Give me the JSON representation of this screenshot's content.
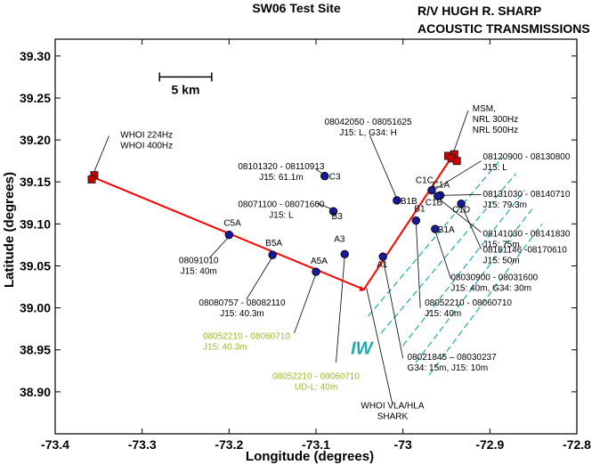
{
  "header": {
    "title": "SW06 Test Site",
    "right_line1": "R/V HUGH R. SHARP",
    "right_line2": "ACOUSTIC TRANSMISSIONS"
  },
  "chart_data": {
    "type": "scatter",
    "xlabel": "Longitude (degrees)",
    "ylabel": "Latitude (degrees)",
    "xlim": [
      -73.4,
      -72.8
    ],
    "ylim": [
      38.85,
      39.32
    ],
    "xticks": [
      -73.4,
      -73.3,
      -73.2,
      -73.1,
      -73.0,
      -72.9,
      -72.8
    ],
    "yticks": [
      38.9,
      38.95,
      39.0,
      39.05,
      39.1,
      39.15,
      39.2,
      39.25,
      39.3
    ],
    "xtick_labels": [
      "-73.4",
      "-73.3",
      "-73.2",
      "-73.1",
      "-73",
      "-72.9",
      "-72.8"
    ],
    "ytick_labels": [
      "38.90",
      "38.95",
      "39.00",
      "39.05",
      "39.10",
      "39.15",
      "39.20",
      "39.25",
      "39.30"
    ],
    "scale_bar": {
      "label": "5 km",
      "x": [
        -73.28,
        -73.22
      ],
      "y": 39.275
    },
    "track": [
      {
        "x": -73.355,
        "y": 39.155
      },
      {
        "x": -73.045,
        "y": 39.022
      },
      {
        "x": -72.945,
        "y": 39.178
      }
    ],
    "sources": [
      {
        "x": -73.355,
        "y": 39.158
      },
      {
        "x": -73.358,
        "y": 39.153
      },
      {
        "x": -72.948,
        "y": 39.181
      },
      {
        "x": -72.941,
        "y": 39.183
      },
      {
        "x": -72.944,
        "y": 39.178
      },
      {
        "x": -72.938,
        "y": 39.175
      }
    ],
    "moorings": [
      {
        "name": "C5A",
        "x": -73.2,
        "y": 39.087
      },
      {
        "name": "B5A",
        "x": -73.15,
        "y": 39.063
      },
      {
        "name": "A5A",
        "x": -73.1,
        "y": 39.043
      },
      {
        "name": "A3",
        "x": -73.067,
        "y": 39.064
      },
      {
        "name": "C3",
        "x": -73.09,
        "y": 39.157
      },
      {
        "name": "B3",
        "x": -73.08,
        "y": 39.115
      },
      {
        "name": "A1",
        "x": -73.023,
        "y": 39.061
      },
      {
        "name": "B1B",
        "x": -73.007,
        "y": 39.128
      },
      {
        "name": "C1C",
        "x": -72.967,
        "y": 39.14
      },
      {
        "name": "C1A",
        "x": -72.957,
        "y": 39.134
      },
      {
        "name": "C1B",
        "x": -72.96,
        "y": 39.133
      },
      {
        "name": "C1D",
        "x": -72.933,
        "y": 39.124
      },
      {
        "name": "B1",
        "x": -72.985,
        "y": 39.104
      },
      {
        "name": "B1A",
        "x": -72.963,
        "y": 39.094
      }
    ],
    "iw_label": "IW",
    "iw_lines": [
      {
        "x1": -73.04,
        "y1": 38.99,
        "x2": -72.885,
        "y2": 39.18
      },
      {
        "x1": -73.025,
        "y1": 38.97,
        "x2": -72.87,
        "y2": 39.16
      },
      {
        "x1": -73.0,
        "y1": 38.955,
        "x2": -72.86,
        "y2": 39.14
      },
      {
        "x1": -72.985,
        "y1": 38.935,
        "x2": -72.85,
        "y2": 39.12
      },
      {
        "x1": -72.97,
        "y1": 38.92,
        "x2": -72.84,
        "y2": 39.1
      }
    ],
    "annotations": [
      {
        "lines": [
          "WHOI 224Hz",
          "WHOI 400Hz"
        ],
        "color": "black",
        "text_x": -73.325,
        "text_y": 39.203,
        "lead": [
          [
            -73.338,
            39.205
          ],
          [
            -73.356,
            39.16
          ]
        ]
      },
      {
        "lines": [
          "08042050 - 08051625",
          "J15: L, G34: H"
        ],
        "color": "black",
        "text_x": -73.04,
        "text_y": 39.218,
        "lead": [
          [
            -73.038,
            39.205
          ],
          [
            -73.007,
            39.13
          ]
        ]
      },
      {
        "lines": [
          "08101320 - 08110913",
          "J15: 61.1m"
        ],
        "color": "black",
        "text_x": -73.14,
        "text_y": 39.165,
        "lead": [
          [
            -73.1,
            39.165
          ],
          [
            -73.09,
            39.158
          ]
        ]
      },
      {
        "lines": [
          "08071100 - 08071600",
          "J15: L"
        ],
        "color": "black",
        "text_x": -73.14,
        "text_y": 39.12,
        "lead": [
          [
            -73.1,
            39.125
          ],
          [
            -73.08,
            39.117
          ]
        ]
      },
      {
        "lines": [
          "08091010",
          "J15: 40m"
        ],
        "color": "black",
        "text_x": -73.235,
        "text_y": 39.053,
        "lead": [
          [
            -73.222,
            39.06
          ],
          [
            -73.2,
            39.085
          ]
        ]
      },
      {
        "lines": [
          "08080757 - 08082110",
          "J15: 40.3m"
        ],
        "color": "black",
        "text_x": -73.185,
        "text_y": 39.003,
        "lead": [
          [
            -73.18,
            39.01
          ],
          [
            -73.15,
            39.061
          ]
        ]
      },
      {
        "lines": [
          "08052210 - 08060710",
          "J15: 40.3m"
        ],
        "color": "green",
        "text_x": -73.23,
        "text_y": 38.963,
        "lead": [
          [
            -73.125,
            38.97
          ],
          [
            -73.1,
            39.041
          ]
        ]
      },
      {
        "lines": [
          "08052210 - 08060710",
          "UD-L: 40m"
        ],
        "color": "green",
        "text_x": -73.1,
        "text_y": 38.915,
        "lead": [
          [
            -73.077,
            38.935
          ],
          [
            -73.067,
            39.062
          ]
        ]
      },
      {
        "lines": [
          "MSM,",
          "NRL 300Hz",
          "NRL 500Hz"
        ],
        "color": "black",
        "text_x": -72.92,
        "text_y": 39.234,
        "lead": [
          [
            -72.925,
            39.235
          ],
          [
            -72.942,
            39.185
          ]
        ]
      },
      {
        "lines": [
          "08120900 - 08130800",
          "J15: L"
        ],
        "color": "black",
        "text_x": -72.908,
        "text_y": 39.177,
        "lead": [
          [
            -72.91,
            39.175
          ],
          [
            -72.965,
            39.14
          ]
        ]
      },
      {
        "lines": [
          "08131030 - 08140710",
          "J15: 79.3m"
        ],
        "color": "black",
        "text_x": -72.908,
        "text_y": 39.132,
        "lead": [
          [
            -72.91,
            39.135
          ],
          [
            -72.957,
            39.134
          ]
        ]
      },
      {
        "lines": [
          "08141030 - 08141830",
          "J15: 75m"
        ],
        "color": "black",
        "text_x": -72.908,
        "text_y": 39.085,
        "lead": [
          [
            -72.91,
            39.09
          ],
          [
            -72.96,
            39.131
          ]
        ]
      },
      {
        "lines": [
          "08161146 -08170610",
          "J15: 50m"
        ],
        "color": "black",
        "text_x": -72.908,
        "text_y": 39.066,
        "lead": [
          [
            -72.91,
            39.07
          ],
          [
            -72.933,
            39.123
          ]
        ]
      },
      {
        "lines": [
          "08030900 - 08031600",
          "J15: 40m, G34: 30m"
        ],
        "color": "black",
        "text_x": -72.945,
        "text_y": 39.033,
        "lead": [
          [
            -72.945,
            39.035
          ],
          [
            -72.963,
            39.092
          ]
        ]
      },
      {
        "lines": [
          "08052210 - 08060710",
          "J15: 40m"
        ],
        "color": "black",
        "text_x": -72.975,
        "text_y": 39.003,
        "lead": [
          [
            -72.98,
            39.0
          ],
          [
            -72.985,
            39.102
          ]
        ]
      },
      {
        "lines": [
          "08021845 – 08030237",
          "G34: 15m, J15: 10m"
        ],
        "color": "black",
        "text_x": -72.995,
        "text_y": 38.938,
        "lead": [
          [
            -73.0,
            38.94
          ],
          [
            -73.023,
            39.059
          ]
        ]
      },
      {
        "lines": [
          "WHOI  VLA/HLA",
          "SHARK"
        ],
        "color": "black",
        "text_x": -73.012,
        "text_y": 38.88,
        "lead": [
          [
            -73.012,
            38.885
          ],
          [
            -73.042,
            39.024
          ]
        ]
      }
    ]
  }
}
